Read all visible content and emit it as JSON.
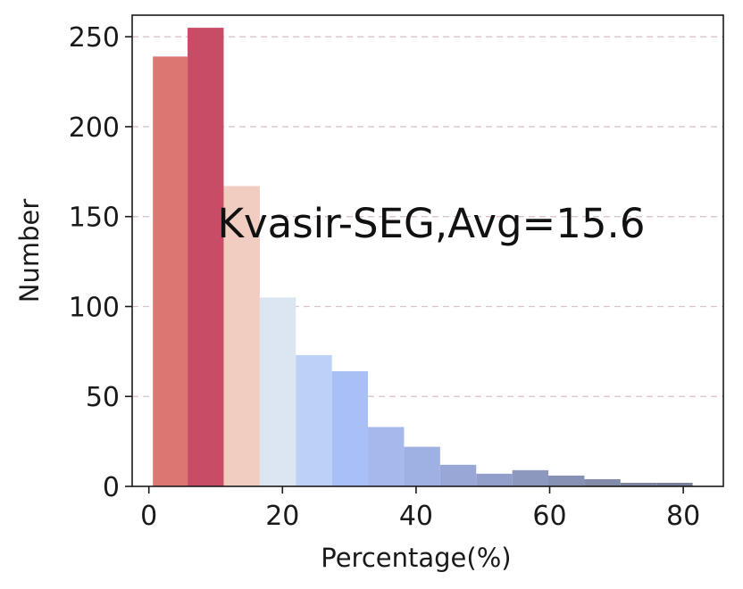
{
  "chart_data": {
    "type": "bar",
    "title": "",
    "xlabel": "Percentage(%)",
    "ylabel": "Number",
    "annotation": "Kvasir-SEG,Avg=15.6",
    "xlim": [
      -2.5,
      86
    ],
    "ylim": [
      0,
      262
    ],
    "xticks": [
      0,
      20,
      40,
      60,
      80
    ],
    "yticks": [
      0,
      50,
      100,
      150,
      200,
      250
    ],
    "grid": {
      "axis": "y",
      "style": "dashed"
    },
    "bins": [
      {
        "x0": 0.6,
        "x1": 5.8,
        "value": 239,
        "color": "#dc7672"
      },
      {
        "x0": 5.8,
        "x1": 11.2,
        "value": 255,
        "color": "#c94c66"
      },
      {
        "x0": 11.2,
        "x1": 16.6,
        "value": 167,
        "color": "#f0cdc0"
      },
      {
        "x0": 16.6,
        "x1": 22.0,
        "value": 105,
        "color": "#dce6f3"
      },
      {
        "x0": 22.0,
        "x1": 27.4,
        "value": 73,
        "color": "#bdd0f6"
      },
      {
        "x0": 27.4,
        "x1": 32.8,
        "value": 64,
        "color": "#a8c0f6"
      },
      {
        "x0": 32.8,
        "x1": 38.2,
        "value": 33,
        "color": "#a6b9ed"
      },
      {
        "x0": 38.2,
        "x1": 43.6,
        "value": 22,
        "color": "#9fb0e2"
      },
      {
        "x0": 43.6,
        "x1": 49.0,
        "value": 12,
        "color": "#98a7d6"
      },
      {
        "x0": 49.0,
        "x1": 54.4,
        "value": 7,
        "color": "#929fca"
      },
      {
        "x0": 54.4,
        "x1": 59.8,
        "value": 9,
        "color": "#8c98be"
      },
      {
        "x0": 59.8,
        "x1": 65.2,
        "value": 6,
        "color": "#8791b4"
      },
      {
        "x0": 65.2,
        "x1": 70.6,
        "value": 4,
        "color": "#828aaa"
      },
      {
        "x0": 70.6,
        "x1": 76.0,
        "value": 2,
        "color": "#7e85a2"
      },
      {
        "x0": 76.0,
        "x1": 81.4,
        "value": 2,
        "color": "#7a809b"
      }
    ]
  }
}
